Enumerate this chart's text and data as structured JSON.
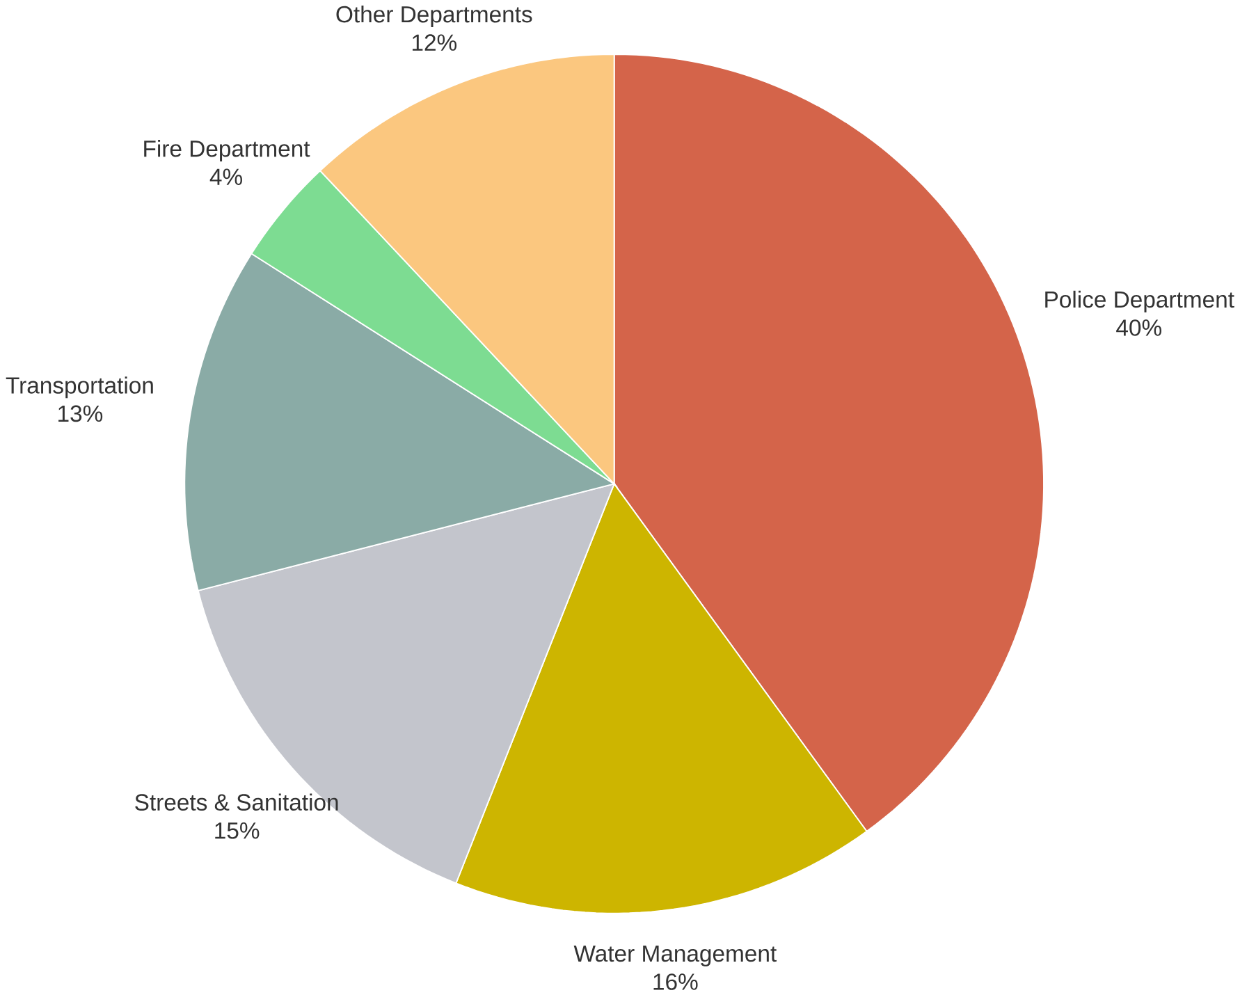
{
  "chart_data": {
    "type": "pie",
    "categories": [
      "Police Department",
      "Water Management",
      "Streets & Sanitation",
      "Transportation",
      "Fire Department",
      "Other Departments"
    ],
    "values": [
      40,
      16,
      15,
      13,
      4,
      12
    ],
    "value_labels": [
      "40%",
      "16%",
      "15%",
      "13%",
      "4%",
      "12%"
    ],
    "colors": [
      "#d4644a",
      "#cdb500",
      "#c3c5cc",
      "#8aaba6",
      "#7ddc92",
      "#fbc77f"
    ]
  }
}
